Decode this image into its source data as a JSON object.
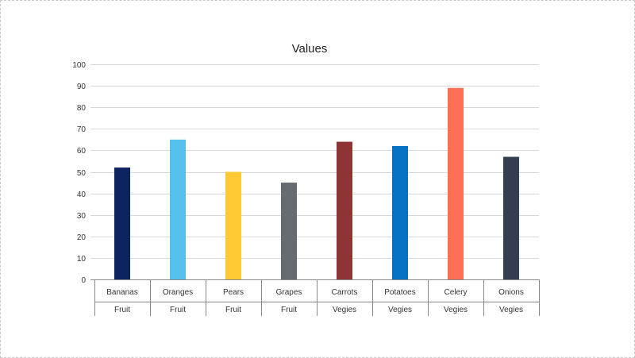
{
  "chart_data": {
    "type": "bar",
    "title": "Values",
    "xlabel": "",
    "ylabel": "",
    "ylim": [
      0,
      100
    ],
    "yticks": [
      0,
      10,
      20,
      30,
      40,
      50,
      60,
      70,
      80,
      90,
      100
    ],
    "grid": true,
    "legend": "none",
    "categories": [
      "Bananas",
      "Oranges",
      "Pears",
      "Grapes",
      "Carrots",
      "Potatoes",
      "Celery",
      "Onions"
    ],
    "groups": [
      "Fruit",
      "Fruit",
      "Fruit",
      "Fruit",
      "Vegies",
      "Vegies",
      "Vegies",
      "Vegies"
    ],
    "values": [
      52,
      65,
      50,
      45,
      64,
      62,
      89,
      57
    ],
    "colors": [
      "#0e2461",
      "#55c0e9",
      "#ffca33",
      "#676c73",
      "#8e3434",
      "#0671c2",
      "#fe6e54",
      "#353e4f"
    ]
  }
}
